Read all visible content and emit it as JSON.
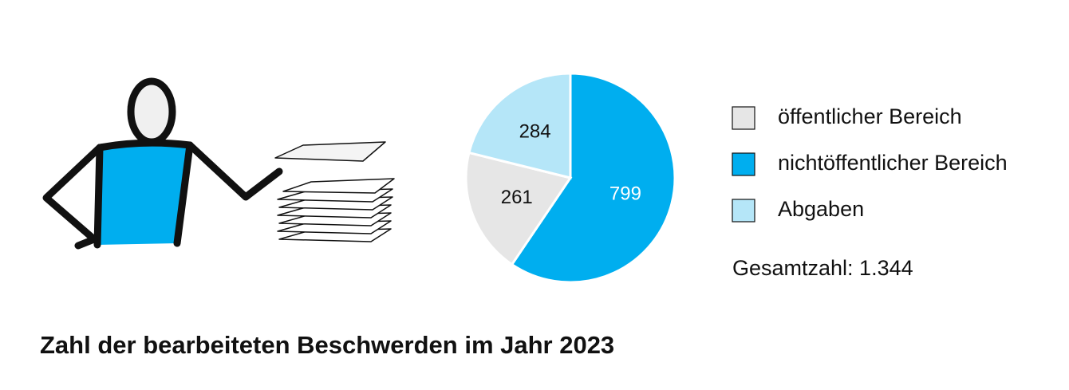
{
  "chart_data": {
    "type": "pie",
    "title": "Zahl der bearbeiteten Beschwerden im Jahr 2023",
    "categories": [
      "nichtöffentlicher Bereich",
      "öffentlicher Bereich",
      "Abgaben"
    ],
    "values": [
      799,
      261,
      284
    ],
    "colors": [
      "#00aeef",
      "#e6e6e6",
      "#b5e6f8"
    ],
    "label_colors": [
      "#ffffff",
      "#111111",
      "#111111"
    ],
    "legend_order": [
      1,
      0,
      2
    ],
    "annotation": "Gesamtzahl: 1.344"
  }
}
